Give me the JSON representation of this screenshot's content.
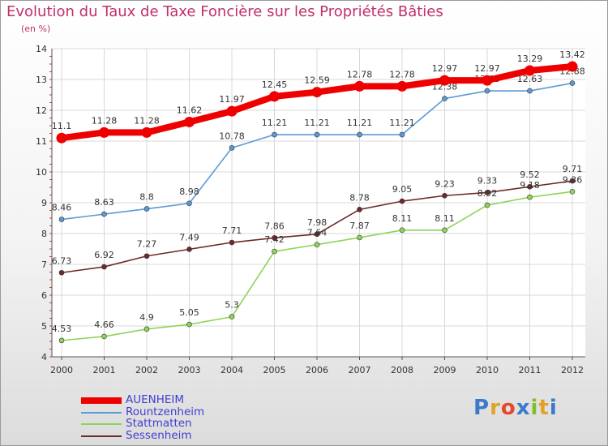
{
  "title": "Evolution du Taux de Taxe Foncière sur les Propriétés Bâties",
  "subtitle": "(en %)",
  "brand": "Proxiti",
  "brand_colors": [
    "#3b79c9",
    "#e2a22a",
    "#e24a2a",
    "#3b79c9",
    "#7cbf2b",
    "#e2a22a",
    "#3b79c9"
  ],
  "chart_data": {
    "type": "line",
    "title": "Evolution du Taux de Taxe Foncière sur les Propriétés Bâties",
    "ylabel": "(en %)",
    "xlabel": "",
    "ylim": [
      4,
      14
    ],
    "yticks": [
      4,
      5,
      6,
      7,
      8,
      9,
      10,
      11,
      12,
      13,
      14
    ],
    "grid": true,
    "categories": [
      "2000",
      "2001",
      "2002",
      "2003",
      "2004",
      "2005",
      "2006",
      "2007",
      "2008",
      "2009",
      "2010",
      "2011",
      "2012"
    ],
    "series": [
      {
        "name": "Sessenheim",
        "color": "#6e2a2a",
        "values": [
          6.73,
          6.92,
          7.27,
          7.49,
          7.71,
          7.86,
          7.98,
          8.78,
          9.05,
          9.23,
          9.33,
          9.52,
          9.71
        ],
        "labels": [
          "6.73",
          "6.92",
          "7.27",
          "7.49",
          "7.71",
          "7.86",
          "7.98",
          "8.78",
          "9.05",
          "9.23",
          "9.33",
          "9.52",
          "9.71"
        ]
      },
      {
        "name": "Stattmatten",
        "color": "#8ed45a",
        "values": [
          4.53,
          4.66,
          4.9,
          5.05,
          5.3,
          7.42,
          7.64,
          7.87,
          8.11,
          8.11,
          8.92,
          9.18,
          9.36
        ],
        "labels": [
          "4.53",
          "4.66",
          "4.9",
          "5.05",
          "5.3",
          "7.42",
          "7.64",
          "7.87",
          "8.11",
          "8.11",
          "8.92",
          "9.18",
          "9.36"
        ]
      },
      {
        "name": "Rountzenheim",
        "color": "#5b9bd5",
        "values": [
          8.46,
          8.63,
          8.8,
          8.98,
          10.78,
          11.21,
          11.21,
          11.21,
          11.21,
          12.38,
          12.63,
          12.63,
          12.88
        ],
        "labels": [
          "8.46",
          "8.63",
          "8.8",
          "8.98",
          "10.78",
          "11.21",
          "11.21",
          "11.21",
          "11.21",
          "12.38",
          "12.63",
          "12.63",
          "12.88"
        ]
      },
      {
        "name": "AUENHEIM",
        "color": "#ee0000",
        "values": [
          11.1,
          11.28,
          11.28,
          11.62,
          11.97,
          12.45,
          12.59,
          12.78,
          12.78,
          12.97,
          12.97,
          13.29,
          13.42
        ],
        "labels": [
          "11.1",
          "11.28",
          "11.28",
          "11.62",
          "11.97",
          "12.45",
          "12.59",
          "12.78",
          "12.78",
          "12.97",
          "12.97",
          "13.29",
          "13.42"
        ]
      }
    ],
    "legend": [
      {
        "name": "AUENHEIM",
        "color": "#ee0000"
      },
      {
        "name": "Rountzenheim",
        "color": "#5b9bd5"
      },
      {
        "name": "Stattmatten",
        "color": "#8ed45a"
      },
      {
        "name": "Sessenheim",
        "color": "#6e2a2a"
      }
    ]
  }
}
